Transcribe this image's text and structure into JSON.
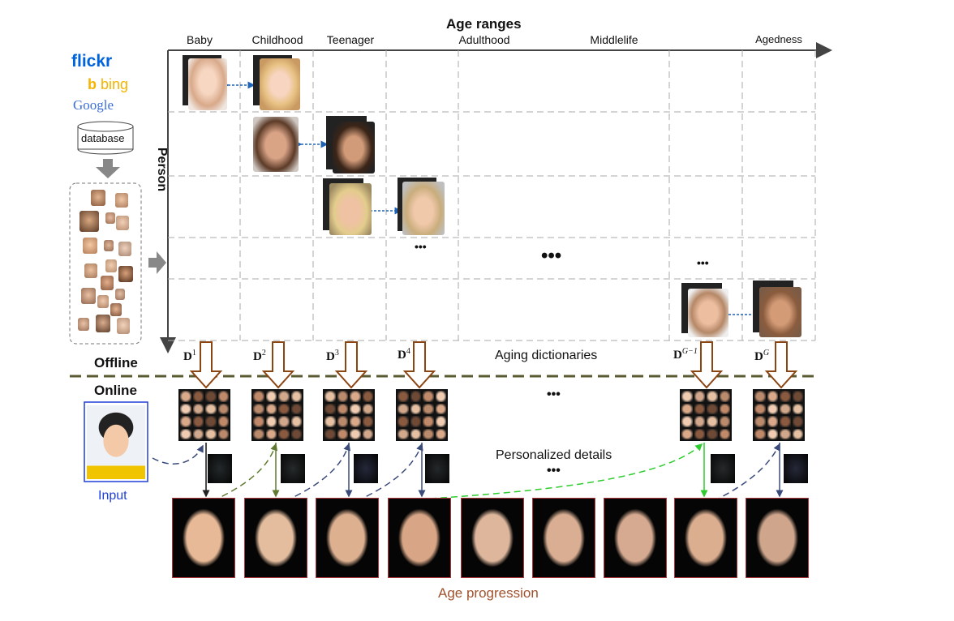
{
  "header": {
    "title": "Age ranges"
  },
  "columns": [
    "Baby",
    "Childhood",
    "Teenager",
    "Adulthood",
    "Middlelife",
    "Agedness"
  ],
  "row_axis_label": "Person",
  "sources": {
    "flickr": "flickr",
    "bing": "bing",
    "google": "Google",
    "database": "database"
  },
  "phases": {
    "offline": "Offline",
    "online": "Online"
  },
  "dictionaries": {
    "labels": [
      {
        "base": "D",
        "sup": "1"
      },
      {
        "base": "D",
        "sup": "2"
      },
      {
        "base": "D",
        "sup": "3"
      },
      {
        "base": "D",
        "sup": "4"
      },
      {
        "base": "D",
        "sup": "G−1"
      },
      {
        "base": "D",
        "sup": "G"
      }
    ],
    "caption": "Aging dictionaries"
  },
  "personalized_caption": "Personalized details",
  "input_label": "Input",
  "output_caption": "Age progression",
  "ellipsis": "•••",
  "colors": {
    "dict_arrow": "#8B4513",
    "divider": "#5a5a30",
    "input_text": "#1f3fd6",
    "caption_brown": "#a0522d",
    "link_blue": "#1f63b5",
    "link_green": "#2ecc2e",
    "link_olive": "#5f7a30",
    "link_navy": "#3a4a7a",
    "flickr_blue": "#0063dc",
    "flickr_pink": "#ff0084",
    "bing_yellow": "#f5b400"
  }
}
